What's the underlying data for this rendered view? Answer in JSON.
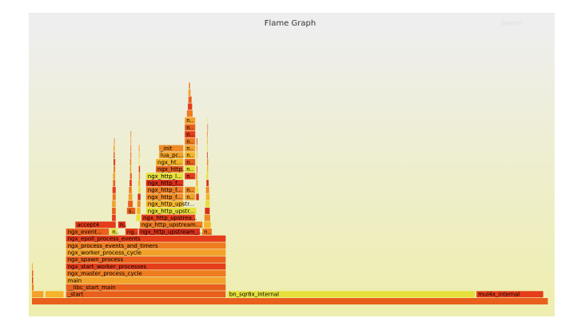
{
  "chart_data": {
    "type": "flame",
    "title": "Flame Graph",
    "search": "Search",
    "xlim": [
      0,
      1000
    ],
    "palette": [
      "#e8601c",
      "#f08a24",
      "#e53c1a",
      "#f5b52a",
      "#ee7b1e",
      "#e6e03a",
      "#f2a12a",
      "#d9301a"
    ],
    "frames": [
      {
        "label": null,
        "level": 0,
        "start": 0,
        "width": 1000
      },
      {
        "label": null,
        "level": 1,
        "start": 0,
        "width": 23
      },
      {
        "label": null,
        "level": 1,
        "start": 26,
        "width": 36
      },
      {
        "label": "_start",
        "level": 1,
        "start": 66,
        "width": 310
      },
      {
        "label": "bn_sqr8x_internal",
        "level": 1,
        "start": 379,
        "width": 480
      },
      {
        "label": "mul4x_internal",
        "level": 1,
        "start": 861,
        "width": 130
      },
      {
        "label": "__libc_start_main",
        "level": 2,
        "start": 66,
        "width": 310
      },
      {
        "label": "main",
        "level": 3,
        "start": 66,
        "width": 310
      },
      {
        "label": "ngx_master_process_cycle",
        "level": 4,
        "start": 66,
        "width": 310
      },
      {
        "label": "ngx_start_worker_processes",
        "level": 5,
        "start": 66,
        "width": 310
      },
      {
        "label": "ngx_spawn_process",
        "level": 6,
        "start": 66,
        "width": 310
      },
      {
        "label": "ngx_worker_process_cycle",
        "level": 7,
        "start": 66,
        "width": 310
      },
      {
        "label": "ngx_process_events_and_timers",
        "level": 8,
        "start": 66,
        "width": 310
      },
      {
        "label": "ngx_epoll_process_events",
        "level": 9,
        "start": 66,
        "width": 310
      },
      {
        "label": "ngx_event...",
        "level": 10,
        "start": 66,
        "width": 84
      },
      {
        "label": "n..",
        "level": 10,
        "start": 152,
        "width": 14
      },
      {
        "label": "ng..",
        "level": 10,
        "start": 181,
        "width": 25
      },
      {
        "label": "ngx_http_upstream_...",
        "level": 10,
        "start": 207,
        "width": 119
      },
      {
        "label": "n..",
        "level": 10,
        "start": 330,
        "width": 19
      },
      {
        "label": "accept4",
        "level": 11,
        "start": 84,
        "width": 79
      },
      {
        "label": "n..",
        "level": 11,
        "start": 167,
        "width": 15
      },
      {
        "label": "ngx_http_upstream...",
        "level": 11,
        "start": 209,
        "width": 122
      },
      {
        "label": "ngx_http_upstrea...",
        "level": 12,
        "start": 212,
        "width": 105
      },
      {
        "label": "s..",
        "level": 13,
        "start": 184,
        "width": 17
      },
      {
        "label": "ngx_http_upstr...",
        "level": 13,
        "start": 221,
        "width": 98
      },
      {
        "label": "ngx_http_upstr...",
        "level": 14,
        "start": 221,
        "width": 73
      },
      {
        "label": "ngx_http_f...",
        "level": 15,
        "start": 221,
        "width": 73
      },
      {
        "label": "n..",
        "level": 15,
        "start": 296,
        "width": 21
      },
      {
        "label": "ngx_http_f...",
        "level": 16,
        "start": 221,
        "width": 73
      },
      {
        "label": "n..",
        "level": 16,
        "start": 296,
        "width": 21
      },
      {
        "label": "ngx_http_f...",
        "level": 17,
        "start": 221,
        "width": 73
      },
      {
        "label": "ngx_http_l...",
        "level": 18,
        "start": 221,
        "width": 73
      },
      {
        "label": "n..",
        "level": 18,
        "start": 296,
        "width": 21
      },
      {
        "label": "ngx_http...",
        "level": 19,
        "start": 240,
        "width": 54
      },
      {
        "label": "n..",
        "level": 19,
        "start": 296,
        "width": 21
      },
      {
        "label": "ngx_ht...",
        "level": 20,
        "start": 240,
        "width": 54
      },
      {
        "label": "n..",
        "level": 20,
        "start": 296,
        "width": 21
      },
      {
        "label": "lua_pc...",
        "level": 21,
        "start": 246,
        "width": 48
      },
      {
        "label": "n..",
        "level": 21,
        "start": 296,
        "width": 21
      },
      {
        "label": "_init",
        "level": 22,
        "start": 246,
        "width": 48
      },
      {
        "label": "n..",
        "level": 22,
        "start": 296,
        "width": 21
      },
      {
        "label": "n..",
        "level": 23,
        "start": 296,
        "width": 21
      },
      {
        "label": "n..",
        "level": 24,
        "start": 296,
        "width": 21
      },
      {
        "label": "n..",
        "level": 25,
        "start": 296,
        "width": 21
      },
      {
        "label": "n..",
        "level": 26,
        "start": 296,
        "width": 21
      },
      {
        "label": null,
        "level": 27,
        "start": 300,
        "width": 12
      },
      {
        "label": null,
        "level": 28,
        "start": 302,
        "width": 9
      },
      {
        "label": null,
        "level": 29,
        "start": 303,
        "width": 7
      },
      {
        "label": null,
        "level": 30,
        "start": 303,
        "width": 5
      },
      {
        "label": null,
        "level": 31,
        "start": 304,
        "width": 3
      },
      {
        "label": null,
        "level": 2,
        "start": 0,
        "width": 4
      },
      {
        "label": null,
        "level": 3,
        "start": 0,
        "width": 3
      },
      {
        "label": null,
        "level": 4,
        "start": 0,
        "width": 3
      },
      {
        "label": null,
        "level": 5,
        "start": 0,
        "width": 2
      },
      {
        "label": null,
        "level": 12,
        "start": 155,
        "width": 8
      },
      {
        "label": null,
        "level": 13,
        "start": 155,
        "width": 8
      },
      {
        "label": null,
        "level": 14,
        "start": 155,
        "width": 8
      },
      {
        "label": null,
        "level": 15,
        "start": 156,
        "width": 7
      },
      {
        "label": null,
        "level": 16,
        "start": 156,
        "width": 7
      },
      {
        "label": null,
        "level": 17,
        "start": 157,
        "width": 5
      },
      {
        "label": null,
        "level": 18,
        "start": 157,
        "width": 5
      },
      {
        "label": null,
        "level": 19,
        "start": 158,
        "width": 4
      },
      {
        "label": null,
        "level": 20,
        "start": 158,
        "width": 4
      },
      {
        "label": null,
        "level": 21,
        "start": 158,
        "width": 3
      },
      {
        "label": null,
        "level": 22,
        "start": 158,
        "width": 3
      },
      {
        "label": null,
        "level": 23,
        "start": 159,
        "width": 2
      },
      {
        "label": null,
        "level": 14,
        "start": 186,
        "width": 10
      },
      {
        "label": null,
        "level": 15,
        "start": 187,
        "width": 8
      },
      {
        "label": null,
        "level": 16,
        "start": 188,
        "width": 6
      },
      {
        "label": null,
        "level": 17,
        "start": 189,
        "width": 5
      },
      {
        "label": null,
        "level": 18,
        "start": 190,
        "width": 4
      },
      {
        "label": null,
        "level": 19,
        "start": 190,
        "width": 3
      },
      {
        "label": null,
        "level": 20,
        "start": 190,
        "width": 3
      },
      {
        "label": null,
        "level": 21,
        "start": 191,
        "width": 2
      },
      {
        "label": null,
        "level": 22,
        "start": 191,
        "width": 2
      },
      {
        "label": null,
        "level": 23,
        "start": 191,
        "width": 2
      },
      {
        "label": null,
        "level": 24,
        "start": 191,
        "width": 2
      },
      {
        "label": null,
        "level": 12,
        "start": 202,
        "width": 9
      },
      {
        "label": null,
        "level": 13,
        "start": 203,
        "width": 8
      },
      {
        "label": null,
        "level": 14,
        "start": 204,
        "width": 7
      },
      {
        "label": null,
        "level": 15,
        "start": 205,
        "width": 6
      },
      {
        "label": null,
        "level": 16,
        "start": 206,
        "width": 5
      },
      {
        "label": null,
        "level": 17,
        "start": 206,
        "width": 4
      },
      {
        "label": null,
        "level": 18,
        "start": 207,
        "width": 3
      },
      {
        "label": null,
        "level": 19,
        "start": 207,
        "width": 3
      },
      {
        "label": null,
        "level": 20,
        "start": 207,
        "width": 2
      },
      {
        "label": null,
        "level": 21,
        "start": 207,
        "width": 2
      },
      {
        "label": null,
        "level": 22,
        "start": 207,
        "width": 2
      },
      {
        "label": null,
        "level": 11,
        "start": 333,
        "width": 14
      },
      {
        "label": null,
        "level": 12,
        "start": 334,
        "width": 12
      },
      {
        "label": null,
        "level": 13,
        "start": 335,
        "width": 10
      },
      {
        "label": null,
        "level": 14,
        "start": 336,
        "width": 9
      },
      {
        "label": null,
        "level": 15,
        "start": 337,
        "width": 8
      },
      {
        "label": null,
        "level": 16,
        "start": 337,
        "width": 7
      },
      {
        "label": null,
        "level": 17,
        "start": 338,
        "width": 5
      },
      {
        "label": null,
        "level": 18,
        "start": 338,
        "width": 4
      },
      {
        "label": null,
        "level": 19,
        "start": 339,
        "width": 3
      },
      {
        "label": null,
        "level": 20,
        "start": 339,
        "width": 3
      },
      {
        "label": null,
        "level": 21,
        "start": 339,
        "width": 2
      },
      {
        "label": null,
        "level": 22,
        "start": 339,
        "width": 2
      },
      {
        "label": null,
        "level": 23,
        "start": 339,
        "width": 2
      },
      {
        "label": null,
        "level": 24,
        "start": 339,
        "width": 2
      },
      {
        "label": null,
        "level": 25,
        "start": 340,
        "width": 1
      },
      {
        "label": null,
        "level": 26,
        "start": 340,
        "width": 1
      },
      {
        "label": null,
        "level": 15,
        "start": 318,
        "width": 6
      },
      {
        "label": null,
        "level": 16,
        "start": 318,
        "width": 5
      },
      {
        "label": null,
        "level": 17,
        "start": 318,
        "width": 4
      },
      {
        "label": null,
        "level": 18,
        "start": 318,
        "width": 3
      },
      {
        "label": null,
        "level": 19,
        "start": 319,
        "width": 2
      },
      {
        "label": null,
        "level": 20,
        "start": 319,
        "width": 2
      },
      {
        "label": null,
        "level": 21,
        "start": 319,
        "width": 2
      },
      {
        "label": null,
        "level": 22,
        "start": 319,
        "width": 2
      },
      {
        "label": null,
        "level": 23,
        "start": 319,
        "width": 2
      }
    ]
  }
}
